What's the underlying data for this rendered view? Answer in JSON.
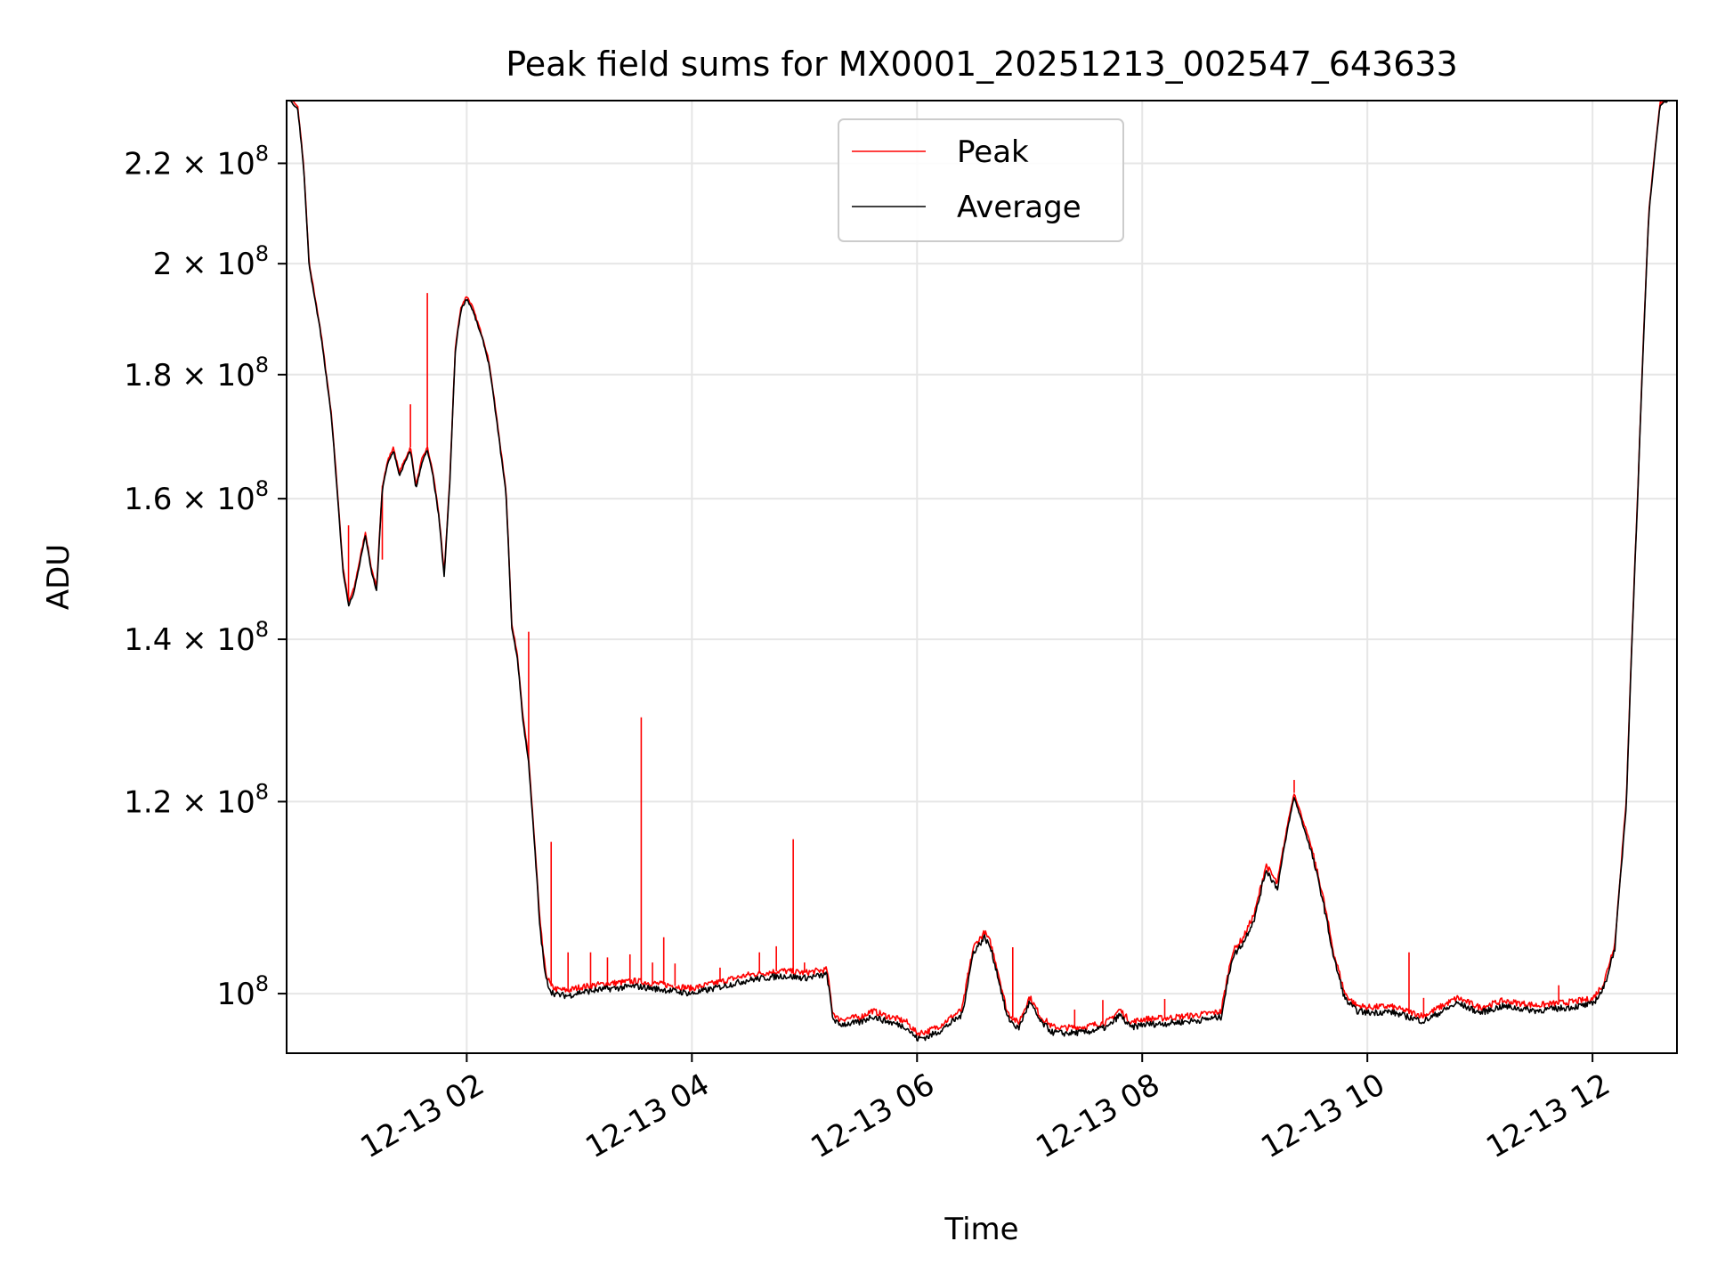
{
  "chart_data": {
    "type": "line",
    "title": "Peak field sums for MX0001_20251213_002547_643633",
    "xlabel": "Time",
    "ylabel": "ADU",
    "yscale": "log",
    "grid": true,
    "legend_position": "top-center",
    "xlim_hours": [
      0.4,
      12.75
    ],
    "ylim": [
      94500000,
      233500000
    ],
    "x_ticks": [
      {
        "hour": 2,
        "label": "12-13 02"
      },
      {
        "hour": 4,
        "label": "12-13 04"
      },
      {
        "hour": 6,
        "label": "12-13 06"
      },
      {
        "hour": 8,
        "label": "12-13 08"
      },
      {
        "hour": 10,
        "label": "12-13 10"
      },
      {
        "hour": 12,
        "label": "12-13 12"
      }
    ],
    "y_ticks": [
      {
        "value": 100000000,
        "mantissa": "",
        "exponent": "8"
      },
      {
        "value": 120000000,
        "mantissa": "1.2",
        "exponent": "8"
      },
      {
        "value": 140000000,
        "mantissa": "1.4",
        "exponent": "8"
      },
      {
        "value": 160000000,
        "mantissa": "1.6",
        "exponent": "8"
      },
      {
        "value": 180000000,
        "mantissa": "1.8",
        "exponent": "8"
      },
      {
        "value": 200000000,
        "mantissa": "2",
        "exponent": "8"
      },
      {
        "value": 220000000,
        "mantissa": "2.2",
        "exponent": "8"
      }
    ],
    "series": [
      {
        "name": "Peak",
        "color": "#ff0000",
        "x_hours": [
          0.4,
          0.5,
          0.55,
          0.6,
          0.7,
          0.8,
          0.9,
          0.95,
          1.0,
          1.1,
          1.15,
          1.2,
          1.25,
          1.3,
          1.35,
          1.4,
          1.45,
          1.5,
          1.55,
          1.6,
          1.65,
          1.7,
          1.75,
          1.8,
          1.85,
          1.9,
          1.95,
          2.0,
          2.05,
          2.1,
          2.15,
          2.2,
          2.25,
          2.3,
          2.35,
          2.4,
          2.45,
          2.5,
          2.55,
          2.6,
          2.65,
          2.7,
          2.75,
          2.8,
          2.9,
          3.0,
          3.2,
          3.5,
          3.8,
          4.0,
          4.2,
          4.5,
          4.8,
          5.0,
          5.2,
          5.25,
          5.3,
          5.5,
          5.6,
          5.7,
          5.9,
          6.0,
          6.1,
          6.2,
          6.4,
          6.5,
          6.6,
          6.65,
          6.7,
          6.8,
          6.9,
          7.0,
          7.1,
          7.15,
          7.2,
          7.3,
          7.5,
          7.7,
          7.8,
          7.9,
          8.0,
          8.2,
          8.5,
          8.7,
          8.8,
          8.9,
          9.0,
          9.1,
          9.2,
          9.3,
          9.35,
          9.4,
          9.45,
          9.5,
          9.6,
          9.7,
          9.8,
          9.9,
          10.0,
          10.2,
          10.5,
          10.8,
          11.0,
          11.2,
          11.5,
          11.8,
          12.0,
          12.1,
          12.2,
          12.3,
          12.4,
          12.5,
          12.6,
          12.75
        ],
        "values": [
          235000000,
          232000000,
          220000000,
          200000000,
          188000000,
          173000000,
          150000000,
          145000000,
          147000000,
          155000000,
          150000000,
          147000000,
          162000000,
          166000000,
          168000000,
          164000000,
          166000000,
          168000000,
          162000000,
          166000000,
          168000000,
          164000000,
          158000000,
          149000000,
          163000000,
          185000000,
          192000000,
          194000000,
          192000000,
          189000000,
          186000000,
          182000000,
          175000000,
          168000000,
          161000000,
          142000000,
          138000000,
          130000000,
          125000000,
          116000000,
          107000000,
          102000000,
          100700000,
          100400000,
          100300000,
          100600000,
          100900000,
          101200000,
          100800000,
          100500000,
          101000000,
          101800000,
          102200000,
          102000000,
          102300000,
          98300000,
          97600000,
          97800000,
          98400000,
          98000000,
          97400000,
          96300000,
          96500000,
          97000000,
          98500000,
          104500000,
          106000000,
          105000000,
          103000000,
          98300000,
          97200000,
          99700000,
          97800000,
          97400000,
          96900000,
          96800000,
          96900000,
          97400000,
          98500000,
          97300000,
          97600000,
          97700000,
          98000000,
          98300000,
          104000000,
          105500000,
          108000000,
          113000000,
          111000000,
          118000000,
          121000000,
          119000000,
          117000000,
          115000000,
          110000000,
          104000000,
          100000000,
          98900000,
          98700000,
          98800000,
          97900000,
          99600000,
          98700000,
          99300000,
          98900000,
          99200000,
          99500000,
          101000000,
          105000000,
          120000000,
          160000000,
          210000000,
          233000000,
          235000000
        ],
        "spikes": [
          {
            "hour": 0.95,
            "value": 156000000
          },
          {
            "hour": 1.25,
            "value": 151000000
          },
          {
            "hour": 1.5,
            "value": 175000000
          },
          {
            "hour": 1.65,
            "value": 194500000
          },
          {
            "hour": 2.55,
            "value": 141000000
          },
          {
            "hour": 2.75,
            "value": 115500000
          },
          {
            "hour": 2.9,
            "value": 104000000
          },
          {
            "hour": 3.1,
            "value": 104000000
          },
          {
            "hour": 3.25,
            "value": 103500000
          },
          {
            "hour": 3.45,
            "value": 103800000
          },
          {
            "hour": 3.55,
            "value": 130000000
          },
          {
            "hour": 3.65,
            "value": 103000000
          },
          {
            "hour": 3.75,
            "value": 105500000
          },
          {
            "hour": 3.85,
            "value": 102900000
          },
          {
            "hour": 4.25,
            "value": 102500000
          },
          {
            "hour": 4.6,
            "value": 104000000
          },
          {
            "hour": 4.75,
            "value": 104600000
          },
          {
            "hour": 4.9,
            "value": 115800000
          },
          {
            "hour": 5.0,
            "value": 103000000
          },
          {
            "hour": 6.45,
            "value": 102000000
          },
          {
            "hour": 6.85,
            "value": 104500000
          },
          {
            "hour": 7.4,
            "value": 98500000
          },
          {
            "hour": 7.65,
            "value": 99400000
          },
          {
            "hour": 8.2,
            "value": 99500000
          },
          {
            "hour": 9.35,
            "value": 122500000
          },
          {
            "hour": 10.37,
            "value": 104000000
          },
          {
            "hour": 10.5,
            "value": 99600000
          },
          {
            "hour": 11.7,
            "value": 100800000
          }
        ]
      },
      {
        "name": "Average",
        "color": "#000000",
        "x_hours": [
          0.4,
          0.5,
          0.55,
          0.6,
          0.7,
          0.8,
          0.9,
          0.95,
          1.0,
          1.1,
          1.15,
          1.2,
          1.25,
          1.3,
          1.35,
          1.4,
          1.45,
          1.5,
          1.55,
          1.6,
          1.65,
          1.7,
          1.75,
          1.8,
          1.85,
          1.9,
          1.95,
          2.0,
          2.05,
          2.1,
          2.15,
          2.2,
          2.25,
          2.3,
          2.35,
          2.4,
          2.45,
          2.5,
          2.55,
          2.6,
          2.65,
          2.7,
          2.75,
          2.8,
          2.9,
          3.0,
          3.2,
          3.5,
          3.8,
          4.0,
          4.2,
          4.5,
          4.8,
          5.0,
          5.2,
          5.25,
          5.3,
          5.5,
          5.6,
          5.7,
          5.9,
          6.0,
          6.1,
          6.2,
          6.4,
          6.5,
          6.6,
          6.65,
          6.7,
          6.8,
          6.9,
          7.0,
          7.1,
          7.15,
          7.2,
          7.3,
          7.5,
          7.7,
          7.8,
          7.9,
          8.0,
          8.2,
          8.5,
          8.7,
          8.8,
          8.9,
          9.0,
          9.1,
          9.2,
          9.3,
          9.35,
          9.4,
          9.45,
          9.5,
          9.6,
          9.7,
          9.8,
          9.9,
          10.0,
          10.2,
          10.5,
          10.8,
          11.0,
          11.2,
          11.5,
          11.8,
          12.0,
          12.1,
          12.2,
          12.3,
          12.4,
          12.5,
          12.6,
          12.75
        ],
        "values": [
          234500000,
          231500000,
          219500000,
          199500000,
          187500000,
          172500000,
          149500000,
          144500000,
          146500000,
          154500000,
          149500000,
          146500000,
          161500000,
          165500000,
          167500000,
          163500000,
          165500000,
          167500000,
          161500000,
          165500000,
          167500000,
          163500000,
          157500000,
          148500000,
          162500000,
          184500000,
          191500000,
          193500000,
          191500000,
          188500000,
          185500000,
          181500000,
          174500000,
          167500000,
          160500000,
          141500000,
          137500000,
          129500000,
          124500000,
          115500000,
          106500000,
          101500000,
          100200000,
          99900000,
          99800000,
          100100000,
          100400000,
          100700000,
          100300000,
          100000000,
          100500000,
          101300000,
          101700000,
          101500000,
          101800000,
          97800000,
          97100000,
          97300000,
          97900000,
          97500000,
          96900000,
          95800000,
          96000000,
          96500000,
          98000000,
          104000000,
          105500000,
          104500000,
          102500000,
          97800000,
          96700000,
          99200000,
          97300000,
          96900000,
          96400000,
          96300000,
          96400000,
          96900000,
          98000000,
          96800000,
          97100000,
          97200000,
          97500000,
          97800000,
          103500000,
          105000000,
          107500000,
          112500000,
          110500000,
          117500000,
          120500000,
          118500000,
          116500000,
          114500000,
          109500000,
          103500000,
          99500000,
          98400000,
          98200000,
          98300000,
          97400000,
          99100000,
          98200000,
          98800000,
          98400000,
          98700000,
          99000000,
          100500000,
          104500000,
          119500000,
          159500000,
          209500000,
          232500000,
          234500000
        ]
      }
    ]
  }
}
